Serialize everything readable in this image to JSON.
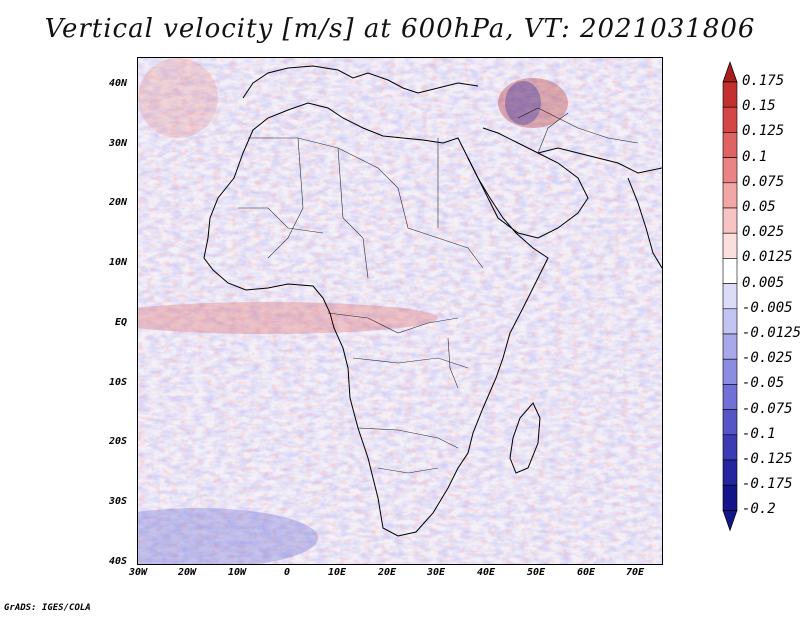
{
  "title": "Vertical velocity [m/s] at 600hPa, VT: 2021031806",
  "credit": "GrADS: IGES/COLA",
  "lat_ticks": [
    "40N",
    "30N",
    "20N",
    "10N",
    "EQ",
    "10S",
    "20S",
    "30S",
    "40S"
  ],
  "lon_ticks": [
    "30W",
    "20W",
    "10W",
    "0",
    "10E",
    "20E",
    "30E",
    "40E",
    "50E",
    "60E",
    "70E"
  ],
  "colorbar": {
    "labels": [
      "0.175",
      "0.15",
      "0.125",
      "0.1",
      "0.075",
      "0.05",
      "0.025",
      "0.0125",
      "0.005",
      "-0.005",
      "-0.0125",
      "-0.025",
      "-0.05",
      "-0.075",
      "-0.1",
      "-0.125",
      "-0.175",
      "-0.2"
    ],
    "colors": [
      "#a51d1d",
      "#c23030",
      "#d54646",
      "#e06363",
      "#ea8484",
      "#f2a6a6",
      "#f7c4c4",
      "#fbdede",
      "#ffffff",
      "#dcdcf8",
      "#c4c4f2",
      "#a8a8eb",
      "#8c8ce2",
      "#7070d6",
      "#5555c8",
      "#3b3bb4",
      "#2525a0",
      "#15158a"
    ]
  }
}
